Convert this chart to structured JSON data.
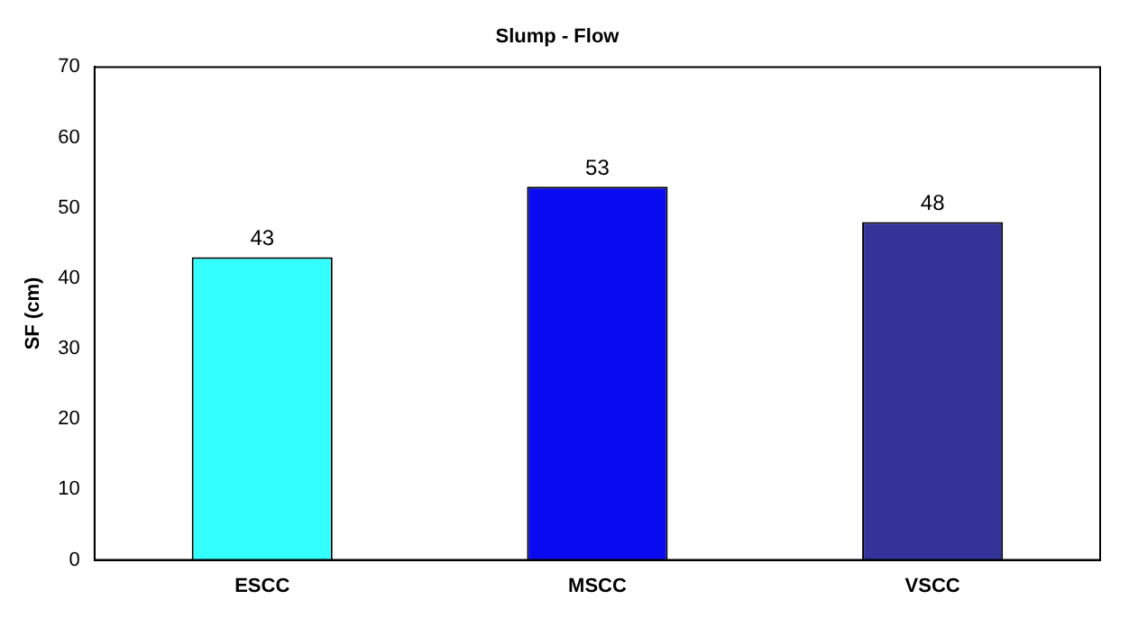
{
  "chart_data": {
    "type": "bar",
    "title": "Slump - Flow",
    "ylabel": "SF (cm)",
    "categories": [
      "ESCC",
      "MSCC",
      "VSCC"
    ],
    "values": [
      43,
      53,
      48
    ],
    "colors": [
      "#33ffff",
      "#0a0af0",
      "#333399"
    ],
    "ylim": [
      0,
      70
    ],
    "yticks": [
      0,
      10,
      20,
      30,
      40,
      50,
      60,
      70
    ],
    "grid": false,
    "data_labels": true
  }
}
